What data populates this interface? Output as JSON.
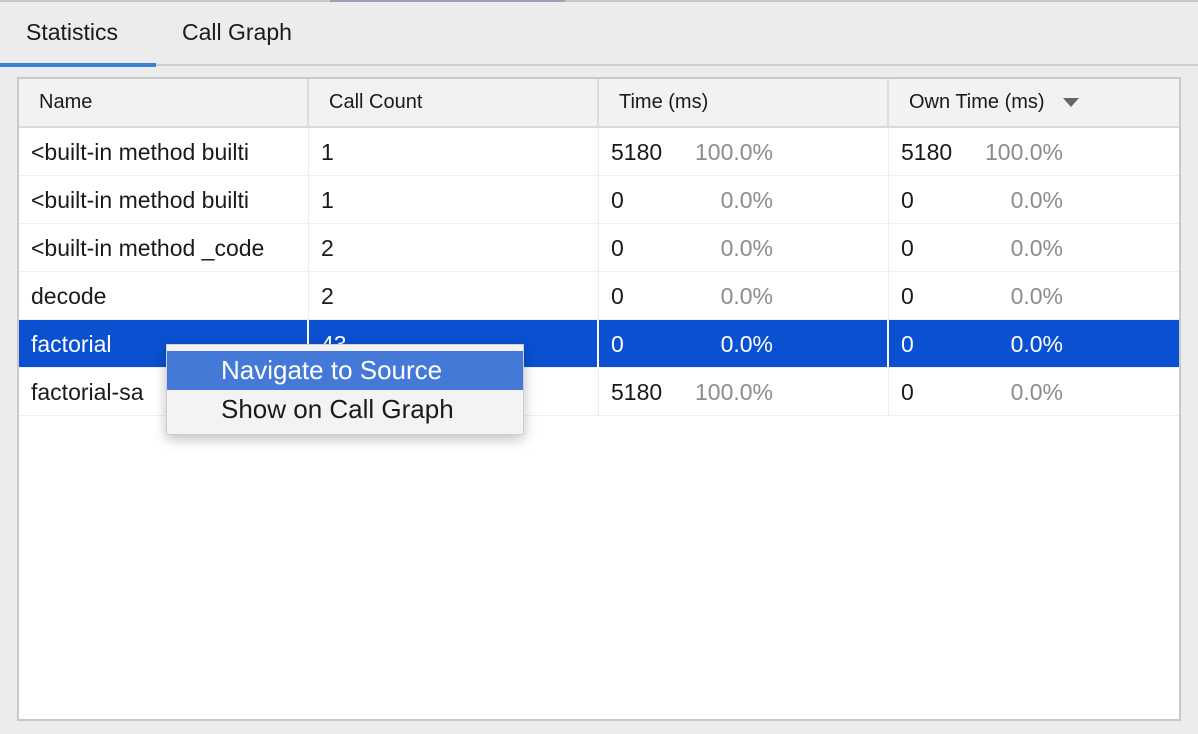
{
  "tabs": [
    {
      "label": "Statistics",
      "active": true
    },
    {
      "label": "Call Graph",
      "active": false
    }
  ],
  "columns": [
    "Name",
    "Call Count",
    "Time (ms)",
    "Own Time (ms)"
  ],
  "sort_column": "Own Time (ms)",
  "sort_direction": "descending",
  "rows": [
    {
      "name": "<built-in method builtins.exec>",
      "name_visible": "<built-in method builti",
      "count": "1",
      "time": "5180",
      "time_pct": "100.0%",
      "own": "5180",
      "own_pct": "100.0%"
    },
    {
      "name": "<built-in method builti",
      "name_visible": "<built-in method builti",
      "count": "1",
      "time": "0",
      "time_pct": "0.0%",
      "own": "0",
      "own_pct": "0.0%"
    },
    {
      "name": "<built-in method _code",
      "name_visible": "<built-in method _code",
      "count": "2",
      "time": "0",
      "time_pct": "0.0%",
      "own": "0",
      "own_pct": "0.0%"
    },
    {
      "name": "decode",
      "name_visible": "decode",
      "count": "2",
      "time": "0",
      "time_pct": "0.0%",
      "own": "0",
      "own_pct": "0.0%"
    },
    {
      "name": "factorial",
      "name_visible": "factorial",
      "count": "43",
      "time": "0",
      "time_pct": "0.0%",
      "own": "0",
      "own_pct": "0.0%",
      "selected": true
    },
    {
      "name": "factorial-sa",
      "name_visible": "factorial-sa",
      "count": "",
      "time": "5180",
      "time_pct": "100.0%",
      "own": "0",
      "own_pct": "0.0%"
    }
  ],
  "context_menu": {
    "items": [
      {
        "label": "Navigate to Source",
        "highlighted": true
      },
      {
        "label": "Show on Call Graph"
      }
    ]
  },
  "colors": {
    "selection": "#0b50d1",
    "menu_highlight": "#4579d8",
    "tab_underline": "#3b7fd0"
  }
}
